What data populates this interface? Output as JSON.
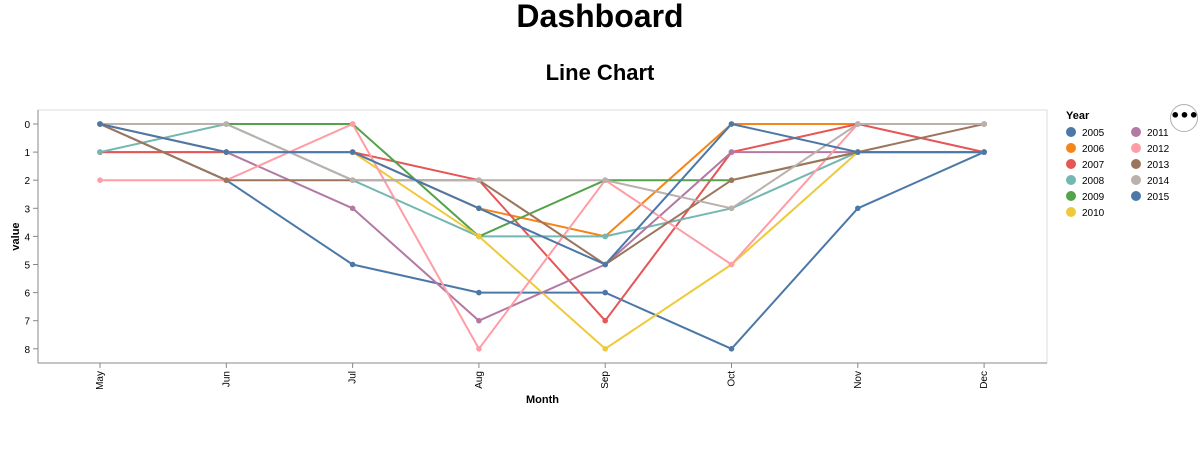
{
  "dashboard": {
    "title": "Dashboard"
  },
  "menu": {
    "icon": "ellipsis-icon",
    "glyph": "•••"
  },
  "chart_data": {
    "type": "line",
    "title": "Line Chart",
    "xlabel": "Month",
    "ylabel": "value",
    "categories": [
      "May",
      "Jun",
      "Jul",
      "Aug",
      "Sep",
      "Oct",
      "Nov",
      "Dec"
    ],
    "ylim": [
      0,
      8
    ],
    "y_reversed": true,
    "yticks": [
      0,
      1,
      2,
      3,
      4,
      5,
      6,
      7,
      8
    ],
    "grid": false,
    "legend_title": "Year",
    "legend_position": "right",
    "series": [
      {
        "name": "2005",
        "color": "#4c78a8",
        "values": [
          0,
          2,
          5,
          6,
          6,
          8,
          3,
          1
        ]
      },
      {
        "name": "2006",
        "color": "#f58518",
        "values": [
          1,
          1,
          1,
          3,
          4,
          0,
          0,
          0
        ]
      },
      {
        "name": "2007",
        "color": "#e45756",
        "values": [
          1,
          1,
          1,
          2,
          7,
          1,
          0,
          1
        ]
      },
      {
        "name": "2008",
        "color": "#72b7b2",
        "values": [
          1,
          0,
          2,
          4,
          4,
          3,
          1,
          1
        ]
      },
      {
        "name": "2009",
        "color": "#54a24b",
        "values": [
          0,
          0,
          0,
          4,
          2,
          2,
          1,
          1
        ]
      },
      {
        "name": "2010",
        "color": "#eeca3b",
        "values": [
          0,
          1,
          1,
          4,
          8,
          5,
          1,
          1
        ]
      },
      {
        "name": "2011",
        "color": "#b279a2",
        "values": [
          0,
          1,
          3,
          7,
          5,
          1,
          1,
          1
        ]
      },
      {
        "name": "2012",
        "color": "#ff9da6",
        "values": [
          2,
          2,
          0,
          8,
          2,
          5,
          0,
          0
        ]
      },
      {
        "name": "2013",
        "color": "#9d755d",
        "values": [
          0,
          2,
          2,
          2,
          5,
          2,
          1,
          0
        ]
      },
      {
        "name": "2014",
        "color": "#bab0ac",
        "values": [
          0,
          0,
          2,
          2,
          2,
          3,
          0,
          0
        ]
      },
      {
        "name": "2015",
        "color": "#4c78a8",
        "values": [
          0,
          1,
          1,
          3,
          5,
          0,
          1,
          1
        ]
      }
    ]
  }
}
